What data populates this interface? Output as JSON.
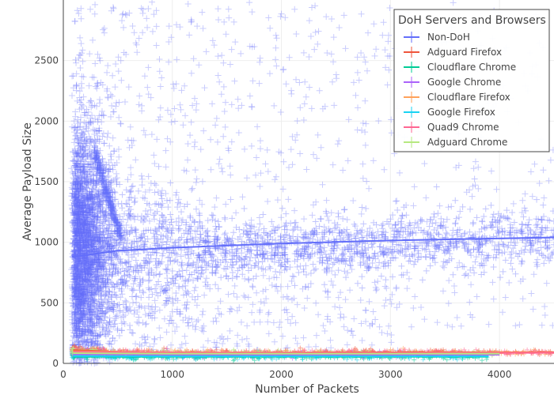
{
  "chart_data": {
    "type": "scatter",
    "xlabel": "Number of Packets",
    "ylabel": "Average Payload Size",
    "xlim": [
      0,
      4500
    ],
    "ylim": [
      0,
      3000
    ],
    "x_ticks": [
      0,
      1000,
      2000,
      3000,
      4000
    ],
    "y_ticks": [
      0,
      500,
      1000,
      1500,
      2000,
      2500
    ],
    "grid": true,
    "legend": {
      "title": "DoH Servers and Browsers",
      "placement": "top-right"
    },
    "series": [
      {
        "name": "Non-DoH",
        "color": "#636efa",
        "trend": [
          [
            80,
            880
          ],
          [
            500,
            930
          ],
          [
            1000,
            955
          ],
          [
            2000,
            990
          ],
          [
            3000,
            1015
          ],
          [
            4000,
            1032
          ],
          [
            4500,
            1040
          ]
        ]
      },
      {
        "name": "Adguard Firefox",
        "color": "#ef553b",
        "trend": [
          [
            90,
            110
          ],
          [
            500,
            95
          ],
          [
            1000,
            90
          ],
          [
            2000,
            90
          ],
          [
            3000,
            92
          ],
          [
            4000,
            92
          ],
          [
            4500,
            93
          ]
        ]
      },
      {
        "name": "Cloudflare Chrome",
        "color": "#00cc96",
        "trend": [
          [
            90,
            55
          ],
          [
            1000,
            55
          ],
          [
            2000,
            55
          ],
          [
            3000,
            55
          ],
          [
            3900,
            55
          ]
        ]
      },
      {
        "name": "Google Chrome",
        "color": "#ab63fa",
        "trend": [
          [
            90,
            75
          ],
          [
            1000,
            72
          ],
          [
            2000,
            72
          ],
          [
            3000,
            72
          ],
          [
            4000,
            72
          ]
        ]
      },
      {
        "name": "Cloudflare Firefox",
        "color": "#ffa15a",
        "trend": [
          [
            90,
            100
          ],
          [
            1000,
            90
          ],
          [
            2000,
            88
          ],
          [
            3000,
            88
          ],
          [
            4000,
            90
          ],
          [
            4500,
            90
          ]
        ]
      },
      {
        "name": "Google Firefox",
        "color": "#19d3f3",
        "trend": [
          [
            90,
            60
          ],
          [
            1000,
            58
          ],
          [
            2000,
            58
          ],
          [
            3000,
            58
          ],
          [
            3900,
            58
          ]
        ]
      },
      {
        "name": "Quad9 Chrome",
        "color": "#ff6692",
        "trend": [
          [
            90,
            95
          ],
          [
            1000,
            88
          ],
          [
            2000,
            86
          ],
          [
            3000,
            86
          ],
          [
            4000,
            87
          ],
          [
            4500,
            88
          ]
        ]
      },
      {
        "name": "Adguard Chrome",
        "color": "#b6e880",
        "trend": [
          [
            90,
            85
          ],
          [
            1000,
            80
          ],
          [
            2000,
            80
          ],
          [
            3000,
            80
          ],
          [
            4000,
            80
          ]
        ]
      }
    ]
  }
}
